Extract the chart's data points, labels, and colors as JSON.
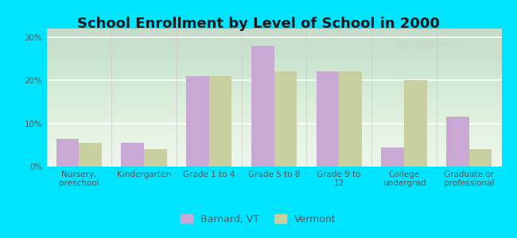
{
  "title": "School Enrollment by Level of School in 2000",
  "categories": [
    "Nursery,\npreschool",
    "Kindergarten",
    "Grade 1 to 4",
    "Grade 5 to 8",
    "Grade 9 to\n12",
    "College\nundergrad",
    "Graduate or\nprofessional"
  ],
  "barnard_values": [
    6.5,
    5.5,
    21.0,
    28.0,
    22.0,
    4.5,
    11.5
  ],
  "vermont_values": [
    5.5,
    4.0,
    21.0,
    22.0,
    22.0,
    20.0,
    4.0
  ],
  "barnard_color": "#c9a8d4",
  "vermont_color": "#c8cfa0",
  "background_color": "#00e5ff",
  "title_fontsize": 13,
  "tick_label_fontsize": 7.5,
  "legend_fontsize": 9,
  "ylim": [
    0,
    32
  ],
  "yticks": [
    0,
    10,
    20,
    30
  ],
  "ytick_labels": [
    "0%",
    "10%",
    "20%",
    "30%"
  ],
  "bar_width": 0.35,
  "legend_barnard": "Barnard, VT",
  "legend_vermont": "Vermont",
  "watermark": "City-Data.com"
}
